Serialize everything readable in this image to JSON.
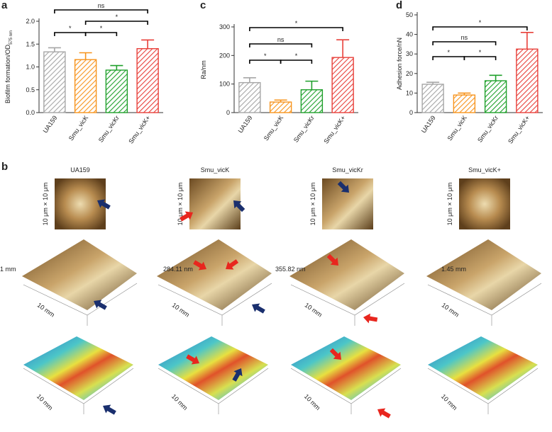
{
  "chart_data": [
    {
      "type": "bar",
      "panel_label": "a",
      "ylabel": "Biofilm formation/OD",
      "ylabel_subscript": "575 nm",
      "categories": [
        "UA159",
        "Smu_vicK",
        "Smu_vicKr",
        "Smu_vicK+"
      ],
      "values": [
        1.33,
        1.16,
        0.93,
        1.4
      ],
      "errors": [
        0.09,
        0.15,
        0.1,
        0.19
      ],
      "colors": [
        "#a6a6a6",
        "#f7941d",
        "#1fa02b",
        "#e8403a"
      ],
      "ylim": [
        0,
        2
      ],
      "yticks": [
        {
          "value": 0,
          "label": "0.0"
        },
        0.5,
        {
          "value": 1,
          "label": "1.0"
        },
        1.5,
        {
          "value": 2,
          "label": "2.0"
        }
      ],
      "comparisons": [
        {
          "pair": [
            0,
            1
          ],
          "label": "*"
        },
        {
          "pair": [
            1,
            2
          ],
          "label": "*"
        },
        {
          "pair": [
            1,
            3
          ],
          "label": "*"
        },
        {
          "pair": [
            0,
            3
          ],
          "label": "ns"
        }
      ]
    },
    {
      "type": "bar",
      "panel_label": "c",
      "ylabel": "Ra/nm",
      "categories": [
        "UA159",
        "Smu_vicK",
        "Smu_vicKr",
        "Smu_vicK+"
      ],
      "values": [
        105,
        37,
        80,
        193
      ],
      "errors": [
        17,
        7,
        30,
        62
      ],
      "colors": [
        "#a6a6a6",
        "#f7941d",
        "#1fa02b",
        "#e8403a"
      ],
      "ylim": [
        0,
        300
      ],
      "yticks": [
        0,
        100,
        200,
        300
      ],
      "comparisons": [
        {
          "pair": [
            0,
            1
          ],
          "label": "*"
        },
        {
          "pair": [
            1,
            2
          ],
          "label": "*"
        },
        {
          "pair": [
            0,
            2
          ],
          "label": "ns"
        },
        {
          "pair": [
            0,
            3
          ],
          "label": "*"
        }
      ]
    },
    {
      "type": "bar",
      "panel_label": "d",
      "ylabel": "Adhesion force/nN",
      "categories": [
        "UA159",
        "Smu_vicK",
        "Smu_vicKr",
        "Smu_vicK+"
      ],
      "values": [
        14.5,
        9,
        16.3,
        32.5
      ],
      "errors": [
        1,
        1,
        2.8,
        8.5
      ],
      "colors": [
        "#a6a6a6",
        "#f7941d",
        "#1fa02b",
        "#e8403a"
      ],
      "ylim": [
        0,
        50
      ],
      "yticks": [
        0,
        10,
        20,
        30,
        40,
        50
      ],
      "comparisons": [
        {
          "pair": [
            0,
            1
          ],
          "label": "*"
        },
        {
          "pair": [
            1,
            2
          ],
          "label": "*"
        },
        {
          "pair": [
            0,
            2
          ],
          "label": "ns"
        },
        {
          "pair": [
            0,
            3
          ],
          "label": "*"
        }
      ]
    }
  ],
  "panel_b": {
    "panel_label": "b",
    "columns": [
      {
        "title": "UA159",
        "scan_size": "10 μm × 10 μm",
        "height": "1 mm",
        "axis_3d": "10 mm",
        "axis_color": "10 mm"
      },
      {
        "title": "Smu_vicK",
        "scan_size": "10 μm × 10 μm",
        "height": "284.11 nm",
        "axis_3d": "10 mm",
        "axis_color": "10 mm"
      },
      {
        "title": "Smu_vicKr",
        "scan_size": "10 μm × 10 μm",
        "height": "355.82 nm",
        "axis_3d": "10 mm",
        "axis_color": "10 mm"
      },
      {
        "title": "Smu_vicK+",
        "scan_size": "10 μm × 10 μm",
        "height": "1.45 mm",
        "axis_3d": "10 mm",
        "axis_color": "10 mm"
      }
    ]
  }
}
